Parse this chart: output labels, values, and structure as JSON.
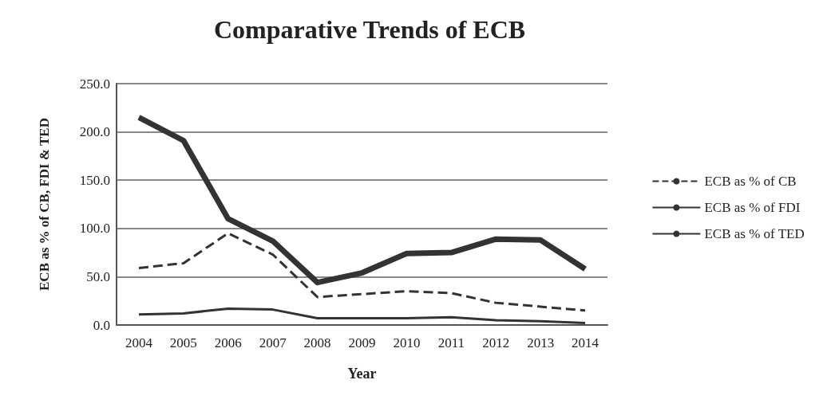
{
  "chart_data": {
    "type": "line",
    "title": "Comparative Trends of ECB",
    "xlabel": "Year",
    "ylabel": "ECB as % of CB, FDI & TED",
    "categories": [
      "2004",
      "2005",
      "2006",
      "2007",
      "2008",
      "2009",
      "2010",
      "2011",
      "2012",
      "2013",
      "2014"
    ],
    "series": [
      {
        "name": "ECB as % of CB",
        "color": "#333333",
        "line_style": "dashed",
        "values": [
          59,
          64,
          95,
          73,
          29,
          32,
          35,
          33,
          23,
          19,
          15
        ]
      },
      {
        "name": "ECB as % of FDI",
        "color": "#333333",
        "line_style": "solid",
        "values": [
          215,
          191,
          110,
          87,
          44,
          54,
          74,
          75,
          89,
          88,
          58
        ]
      },
      {
        "name": "ECB as % of TED",
        "color": "#333333",
        "line_style": "solid",
        "values": [
          11,
          12,
          17,
          16,
          7,
          7,
          7,
          8,
          5,
          4,
          2
        ]
      }
    ],
    "ylim": [
      0,
      250
    ],
    "yticks": [
      {
        "value": 0,
        "label": "0.0"
      },
      {
        "value": 50,
        "label": "50.0"
      },
      {
        "value": 100,
        "label": "100.0"
      },
      {
        "value": 150,
        "label": "150.0"
      },
      {
        "value": 200,
        "label": "200.0"
      },
      {
        "value": 250,
        "label": "250.0"
      }
    ],
    "grid": "y",
    "legend": "right",
    "marker": "none"
  }
}
